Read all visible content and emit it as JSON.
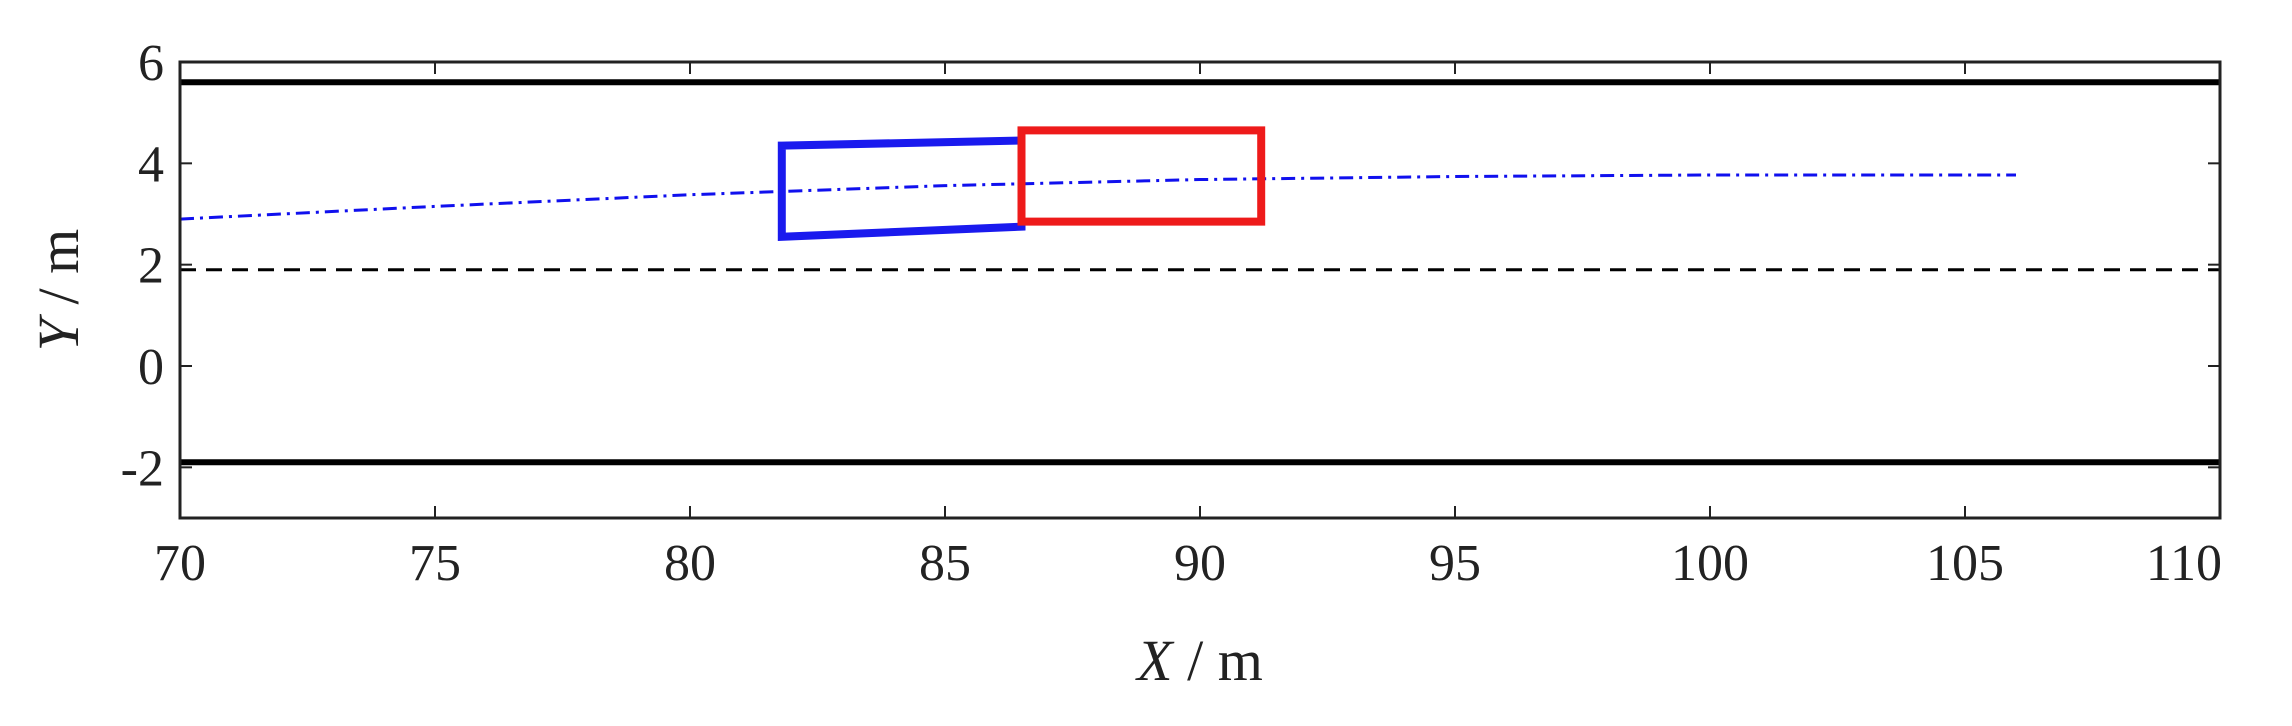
{
  "chart_data": {
    "type": "line",
    "title": "",
    "xlabel": {
      "var": "X",
      "unit": " / m"
    },
    "ylabel": {
      "var": "Y",
      "unit": " / m"
    },
    "xlim": [
      70,
      110
    ],
    "ylim": [
      -3,
      6
    ],
    "xticks": [
      70,
      75,
      80,
      85,
      90,
      95,
      100,
      105,
      110
    ],
    "yticks": [
      -2,
      0,
      2,
      4,
      6
    ],
    "xtick_labels": [
      "70",
      "75",
      "80",
      "85",
      "90",
      "95",
      "100",
      "105",
      "110"
    ],
    "ytick_labels": [
      "-2",
      "0",
      "2",
      "4",
      "6"
    ],
    "grid": false,
    "lane_lines": [
      {
        "y": 5.6,
        "style": "solid",
        "color": "#000000"
      },
      {
        "y": 1.9,
        "style": "dashed",
        "color": "#000000"
      },
      {
        "y": -1.9,
        "style": "solid",
        "color": "#000000"
      }
    ],
    "series": [
      {
        "style": "dash-dot",
        "color": "#1010ee",
        "x": [
          70,
          75,
          80,
          85,
          90,
          95,
          100,
          106
        ],
        "y": [
          2.9,
          3.15,
          3.38,
          3.56,
          3.68,
          3.74,
          3.77,
          3.77
        ]
      }
    ],
    "polygons": [
      {
        "color": "#1a1aee",
        "points": [
          [
            81.8,
            4.35
          ],
          [
            86.5,
            4.45
          ],
          [
            86.5,
            2.75
          ],
          [
            81.8,
            2.55
          ]
        ]
      },
      {
        "color": "#ee1a1a",
        "points": [
          [
            86.5,
            4.65
          ],
          [
            91.2,
            4.65
          ],
          [
            91.2,
            2.85
          ],
          [
            86.5,
            2.85
          ]
        ]
      }
    ]
  }
}
